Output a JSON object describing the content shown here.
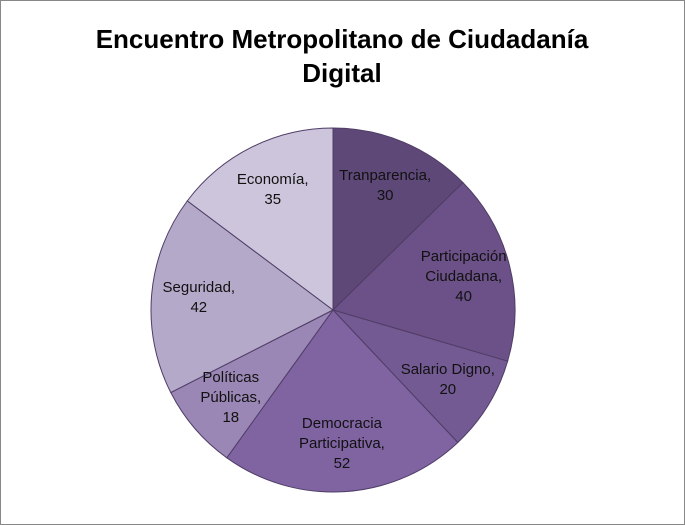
{
  "chart_data": {
    "type": "pie",
    "title": "Encuentro Metropolitano de Ciudadanía Digital",
    "categories": [
      "Tranparencia,",
      "Participación Ciudadana,",
      "Salario Digno,",
      "Democracia Participativa,",
      "Políticas Públicas,",
      "Seguridad,",
      "Economía,"
    ],
    "values": [
      30,
      40,
      20,
      52,
      18,
      42,
      35
    ],
    "colors": [
      "#5e4878",
      "#6c5188",
      "#735a93",
      "#8064a2",
      "#9a87b5",
      "#b5a9c9",
      "#cdc5dc"
    ]
  }
}
